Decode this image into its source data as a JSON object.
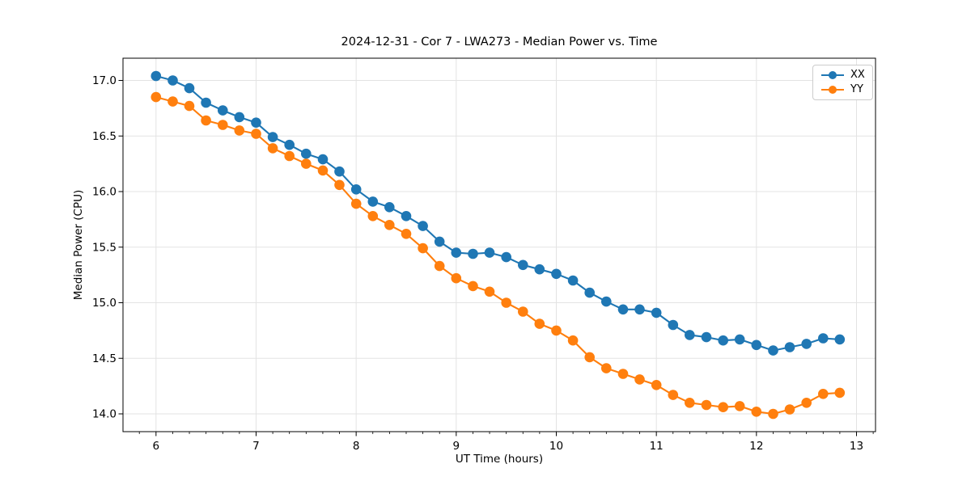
{
  "title": "2024-12-31 - Cor 7 - LWA273 - Median Power vs. Time",
  "chart_data": {
    "type": "line",
    "title": "2024-12-31 - Cor 7 - LWA273 - Median Power vs. Time",
    "xlabel": "UT Time (hours)",
    "ylabel": "Median Power (CPU)",
    "xlim": [
      5.67,
      13.19
    ],
    "ylim": [
      13.84,
      17.2
    ],
    "xticks": [
      6,
      7,
      8,
      9,
      10,
      11,
      12,
      13
    ],
    "yticks": [
      14.0,
      14.5,
      15.0,
      15.5,
      16.0,
      16.5,
      17.0
    ],
    "x_minor_step": 0.1666667,
    "grid": true,
    "grid_color": "#e3e3e3",
    "legend_position": "upper right",
    "x": [
      6.0,
      6.167,
      6.333,
      6.5,
      6.667,
      6.833,
      7.0,
      7.167,
      7.333,
      7.5,
      7.667,
      7.833,
      8.0,
      8.167,
      8.333,
      8.5,
      8.667,
      8.833,
      9.0,
      9.167,
      9.333,
      9.5,
      9.667,
      9.833,
      10.0,
      10.167,
      10.333,
      10.5,
      10.667,
      10.833,
      11.0,
      11.167,
      11.333,
      11.5,
      11.667,
      11.833,
      12.0,
      12.167,
      12.333,
      12.5,
      12.667,
      12.833
    ],
    "series": [
      {
        "name": "XX",
        "color": "#1f77b4",
        "values": [
          17.04,
          17.0,
          16.93,
          16.8,
          16.73,
          16.67,
          16.62,
          16.49,
          16.42,
          16.34,
          16.29,
          16.18,
          16.02,
          15.91,
          15.86,
          15.78,
          15.69,
          15.55,
          15.45,
          15.44,
          15.45,
          15.41,
          15.34,
          15.3,
          15.26,
          15.2,
          15.09,
          15.01,
          14.94,
          14.94,
          14.91,
          14.8,
          14.71,
          14.69,
          14.66,
          14.67,
          14.62,
          14.57,
          14.6,
          14.63,
          14.68,
          14.67
        ]
      },
      {
        "name": "YY",
        "color": "#ff7f0e",
        "values": [
          16.85,
          16.81,
          16.77,
          16.64,
          16.6,
          16.55,
          16.52,
          16.39,
          16.32,
          16.25,
          16.19,
          16.06,
          15.89,
          15.78,
          15.7,
          15.62,
          15.49,
          15.33,
          15.22,
          15.15,
          15.1,
          15.0,
          14.92,
          14.81,
          14.75,
          14.66,
          14.51,
          14.41,
          14.36,
          14.31,
          14.26,
          14.17,
          14.1,
          14.08,
          14.06,
          14.07,
          14.02,
          14.0,
          14.04,
          14.1,
          14.18,
          14.19
        ]
      }
    ]
  }
}
